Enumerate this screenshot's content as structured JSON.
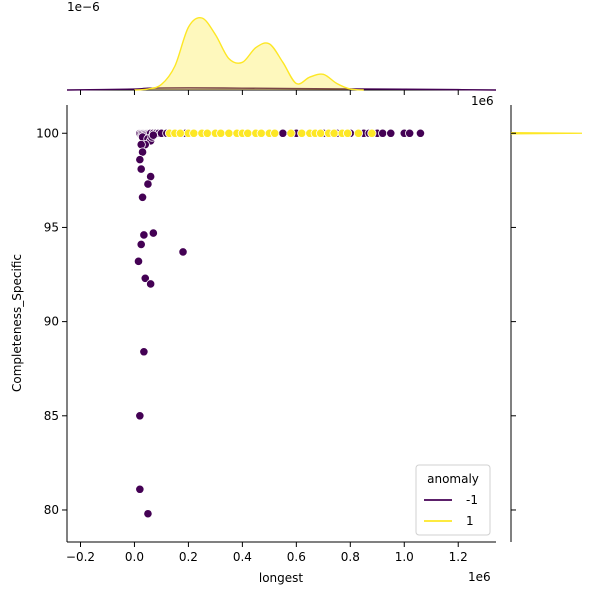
{
  "chart_data": {
    "type": "scatter",
    "title": "",
    "xlabel": "longest",
    "ylabel": "Completeness_Specific",
    "x_offset_text": "1e6",
    "y_offset_text_top_margin": "1e−6",
    "x_offset_text_right_margin": "1e6",
    "xlim": [
      -0.25,
      1.34
    ],
    "ylim": [
      78.3,
      101.5
    ],
    "xticks": [
      -0.2,
      0.0,
      0.2,
      0.4,
      0.6,
      0.8,
      1.0,
      1.2
    ],
    "xtick_labels": [
      "−0.2",
      "0.0",
      "0.2",
      "0.4",
      "0.6",
      "0.8",
      "1.0",
      "1.2"
    ],
    "yticks": [
      80,
      85,
      90,
      95,
      100
    ],
    "ytick_labels": [
      "80",
      "85",
      "90",
      "95",
      "100"
    ],
    "grid": false,
    "legend": {
      "title": "anomaly",
      "placement": "lower-right",
      "entries": [
        {
          "label": "-1",
          "color": "#440154"
        },
        {
          "label": "1",
          "color": "#fde725"
        }
      ]
    },
    "series": [
      {
        "name": "-1",
        "color": "#440154",
        "x": [
          0.02,
          0.025,
          0.03,
          0.035,
          0.04,
          0.045,
          0.05,
          0.055,
          0.06,
          0.07,
          0.08,
          0.09,
          0.1,
          0.12,
          0.19,
          0.55,
          0.6,
          0.7,
          0.75,
          0.8,
          0.85,
          0.87,
          0.9,
          0.92,
          0.95,
          1.0,
          1.02,
          1.06,
          0.03,
          0.05,
          0.06,
          0.065,
          0.07,
          0.04,
          0.025,
          0.03,
          0.02,
          0.025,
          0.06,
          0.05,
          0.03,
          0.035,
          0.07,
          0.025,
          0.18,
          0.015,
          0.04,
          0.06,
          0.035,
          0.02,
          0.02,
          0.05
        ],
        "y": [
          100,
          100,
          100,
          100,
          100,
          100,
          100,
          100,
          100,
          100,
          100,
          100,
          100,
          100,
          100,
          100,
          100,
          100,
          100,
          100,
          100,
          100,
          100,
          100,
          100,
          100,
          100,
          100,
          99.8,
          99.7,
          99.6,
          99.8,
          99.9,
          99.4,
          99.4,
          99.0,
          98.6,
          98.1,
          97.7,
          97.3,
          96.6,
          94.6,
          94.7,
          94.1,
          93.7,
          93.2,
          92.3,
          92.0,
          88.4,
          85.0,
          81.1,
          79.8
        ]
      },
      {
        "name": "1",
        "color": "#fde725",
        "x": [
          0.13,
          0.15,
          0.17,
          0.2,
          0.22,
          0.25,
          0.27,
          0.3,
          0.32,
          0.35,
          0.38,
          0.4,
          0.42,
          0.45,
          0.47,
          0.5,
          0.52,
          0.58,
          0.62,
          0.65,
          0.67,
          0.69,
          0.72,
          0.74,
          0.77,
          0.79,
          0.83,
          0.88
        ],
        "y": [
          100,
          100,
          100,
          100,
          100,
          100,
          100,
          100,
          100,
          100,
          100,
          100,
          100,
          100,
          100,
          100,
          100,
          100,
          100,
          100,
          100,
          100,
          100,
          100,
          100,
          100,
          100,
          100
        ]
      }
    ],
    "top_marginal": {
      "type": "kde",
      "series": [
        {
          "name": "1",
          "x": [
            0.0,
            0.05,
            0.1,
            0.15,
            0.2,
            0.25,
            0.3,
            0.35,
            0.4,
            0.45,
            0.5,
            0.55,
            0.6,
            0.65,
            0.7,
            0.75,
            0.8,
            0.85
          ],
          "density": [
            0.0,
            0.05,
            0.3,
            1.3,
            3.4,
            3.9,
            3.0,
            1.7,
            1.5,
            2.3,
            2.5,
            1.5,
            0.35,
            0.7,
            0.85,
            0.35,
            0.05,
            0.0
          ]
        },
        {
          "name": "-1",
          "x": [
            -0.25,
            0.0,
            0.05,
            0.2,
            0.4,
            0.6,
            0.8,
            1.0,
            1.2,
            1.34
          ],
          "density": [
            0.0,
            0.05,
            0.1,
            0.12,
            0.1,
            0.08,
            0.06,
            0.04,
            0.02,
            0.0
          ]
        }
      ]
    },
    "right_marginal": {
      "type": "kde",
      "series": [
        {
          "name": "1",
          "y": 100,
          "peak": 1.0
        }
      ]
    }
  }
}
